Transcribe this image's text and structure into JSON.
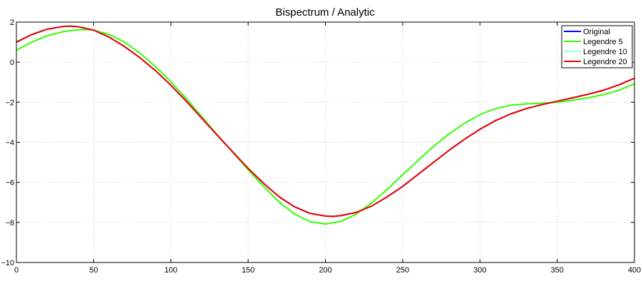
{
  "chart_data": {
    "type": "line",
    "title": "Bispectrum / Analytic",
    "xlabel": "",
    "ylabel": "",
    "xlim": [
      0,
      400
    ],
    "ylim": [
      -10,
      2
    ],
    "xticks": [
      0,
      50,
      100,
      150,
      200,
      250,
      300,
      350,
      400
    ],
    "yticks": [
      -10,
      -8,
      -6,
      -4,
      -2,
      0,
      2
    ],
    "grid": true,
    "legend_position": "top-right",
    "series": [
      {
        "name": "Original",
        "color": "#0000ff",
        "x": [
          0,
          10,
          20,
          30,
          35,
          40,
          50,
          60,
          70,
          80,
          90,
          100,
          110,
          120,
          130,
          140,
          150,
          160,
          170,
          180,
          190,
          200,
          205,
          210,
          220,
          230,
          240,
          250,
          260,
          270,
          280,
          290,
          300,
          310,
          320,
          330,
          340,
          350,
          360,
          370,
          380,
          390,
          400
        ],
        "y": [
          1.0,
          1.38,
          1.65,
          1.78,
          1.8,
          1.77,
          1.6,
          1.25,
          0.78,
          0.22,
          -0.42,
          -1.15,
          -1.95,
          -2.8,
          -3.65,
          -4.48,
          -5.3,
          -6.05,
          -6.72,
          -7.22,
          -7.55,
          -7.68,
          -7.7,
          -7.66,
          -7.5,
          -7.18,
          -6.72,
          -6.2,
          -5.6,
          -5.0,
          -4.4,
          -3.85,
          -3.35,
          -2.92,
          -2.58,
          -2.32,
          -2.12,
          -1.95,
          -1.78,
          -1.6,
          -1.4,
          -1.13,
          -0.8
        ]
      },
      {
        "name": "Legendre 5",
        "color": "#33ff00",
        "x": [
          0,
          10,
          20,
          30,
          40,
          45,
          50,
          60,
          70,
          80,
          90,
          100,
          110,
          120,
          130,
          140,
          150,
          160,
          170,
          180,
          190,
          200,
          210,
          220,
          230,
          240,
          250,
          260,
          270,
          280,
          290,
          300,
          310,
          320,
          330,
          340,
          350,
          360,
          370,
          380,
          390,
          400
        ],
        "y": [
          0.6,
          1.0,
          1.32,
          1.52,
          1.62,
          1.63,
          1.6,
          1.38,
          1.0,
          0.45,
          -0.22,
          -0.98,
          -1.82,
          -2.72,
          -3.62,
          -4.5,
          -5.38,
          -6.2,
          -6.98,
          -7.58,
          -7.96,
          -8.08,
          -7.95,
          -7.58,
          -7.02,
          -6.35,
          -5.62,
          -4.9,
          -4.2,
          -3.58,
          -3.05,
          -2.62,
          -2.32,
          -2.15,
          -2.08,
          -2.05,
          -2.0,
          -1.9,
          -1.78,
          -1.62,
          -1.4,
          -1.08
        ]
      },
      {
        "name": "Legendre 10",
        "color": "#99ffdd",
        "x": [
          0,
          10,
          20,
          30,
          35,
          40,
          50,
          60,
          70,
          80,
          90,
          100,
          110,
          120,
          130,
          140,
          150,
          160,
          170,
          180,
          190,
          200,
          205,
          210,
          220,
          230,
          240,
          250,
          260,
          270,
          280,
          290,
          300,
          310,
          320,
          330,
          340,
          350,
          360,
          370,
          380,
          390,
          400
        ],
        "y": [
          1.02,
          1.4,
          1.66,
          1.78,
          1.8,
          1.77,
          1.6,
          1.25,
          0.79,
          0.23,
          -0.41,
          -1.14,
          -1.94,
          -2.79,
          -3.64,
          -4.48,
          -5.3,
          -6.06,
          -6.73,
          -7.23,
          -7.56,
          -7.68,
          -7.7,
          -7.65,
          -7.49,
          -7.18,
          -6.72,
          -6.2,
          -5.6,
          -5.0,
          -4.41,
          -3.86,
          -3.36,
          -2.93,
          -2.59,
          -2.32,
          -2.12,
          -1.95,
          -1.78,
          -1.6,
          -1.4,
          -1.13,
          -0.8
        ]
      },
      {
        "name": "Legendre 20",
        "color": "#ee0000",
        "x": [
          0,
          10,
          20,
          30,
          35,
          40,
          50,
          60,
          70,
          80,
          90,
          100,
          110,
          120,
          130,
          140,
          150,
          160,
          170,
          180,
          190,
          200,
          205,
          210,
          220,
          230,
          240,
          250,
          260,
          270,
          280,
          290,
          300,
          310,
          320,
          330,
          340,
          350,
          360,
          370,
          380,
          390,
          400
        ],
        "y": [
          1.0,
          1.38,
          1.65,
          1.78,
          1.8,
          1.77,
          1.6,
          1.25,
          0.78,
          0.22,
          -0.42,
          -1.15,
          -1.95,
          -2.8,
          -3.65,
          -4.48,
          -5.3,
          -6.05,
          -6.72,
          -7.22,
          -7.55,
          -7.68,
          -7.7,
          -7.66,
          -7.5,
          -7.18,
          -6.72,
          -6.2,
          -5.6,
          -5.0,
          -4.4,
          -3.85,
          -3.35,
          -2.92,
          -2.58,
          -2.32,
          -2.12,
          -1.95,
          -1.78,
          -1.6,
          -1.4,
          -1.13,
          -0.8
        ]
      }
    ]
  }
}
